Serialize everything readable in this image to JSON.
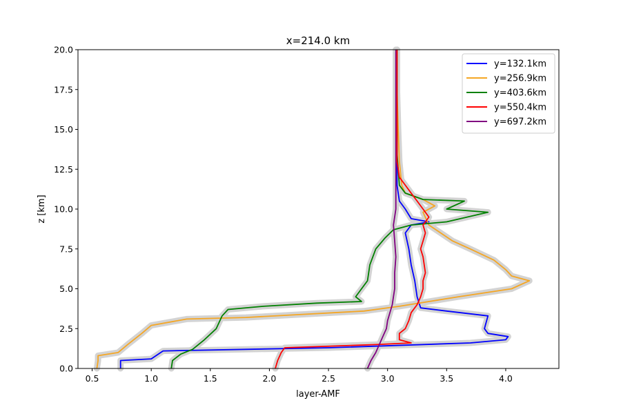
{
  "chart_data": {
    "type": "line",
    "title": "x=214.0 km",
    "xlabel": "layer-AMF",
    "ylabel": "z [km]",
    "xlim": [
      0.38,
      4.45
    ],
    "ylim": [
      0,
      20
    ],
    "xticks": [
      "0.5",
      "1.0",
      "1.5",
      "2.0",
      "2.5",
      "3.0",
      "3.5",
      "4.0"
    ],
    "yticks": [
      "0.0",
      "2.5",
      "5.0",
      "7.5",
      "10.0",
      "12.5",
      "15.0",
      "17.5",
      "20.0"
    ],
    "grid": false,
    "legend_position": "top-right",
    "uncertainty_band_color": "#d3d3d3",
    "series": [
      {
        "name": "y=132.1km",
        "color": "#0000ff",
        "points": [
          [
            0.74,
            0.0
          ],
          [
            0.74,
            0.5
          ],
          [
            1.0,
            0.6
          ],
          [
            1.1,
            1.1
          ],
          [
            2.5,
            1.3
          ],
          [
            3.7,
            1.6
          ],
          [
            4.0,
            1.8
          ],
          [
            4.02,
            2.0
          ],
          [
            3.85,
            2.2
          ],
          [
            3.82,
            2.5
          ],
          [
            3.85,
            3.3
          ],
          [
            3.5,
            3.6
          ],
          [
            3.28,
            3.8
          ],
          [
            3.25,
            4.5
          ],
          [
            3.23,
            5.5
          ],
          [
            3.2,
            6.5
          ],
          [
            3.18,
            7.5
          ],
          [
            3.15,
            8.5
          ],
          [
            3.2,
            9.0
          ],
          [
            3.35,
            9.2
          ],
          [
            3.2,
            9.4
          ],
          [
            3.15,
            10.0
          ],
          [
            3.1,
            10.5
          ],
          [
            3.08,
            11.5
          ],
          [
            3.08,
            13.0
          ],
          [
            3.08,
            15.0
          ],
          [
            3.08,
            17.5
          ],
          [
            3.08,
            20.0
          ]
        ]
      },
      {
        "name": "y=256.9km",
        "color": "#f5a623",
        "points": [
          [
            0.54,
            0.0
          ],
          [
            0.55,
            0.5
          ],
          [
            0.55,
            0.8
          ],
          [
            0.72,
            1.0
          ],
          [
            0.8,
            1.5
          ],
          [
            0.92,
            2.2
          ],
          [
            1.0,
            2.7
          ],
          [
            1.3,
            3.1
          ],
          [
            1.8,
            3.2
          ],
          [
            2.8,
            3.6
          ],
          [
            3.1,
            3.9
          ],
          [
            3.6,
            4.5
          ],
          [
            4.05,
            5.0
          ],
          [
            4.2,
            5.5
          ],
          [
            4.05,
            5.8
          ],
          [
            4.0,
            6.2
          ],
          [
            3.9,
            6.8
          ],
          [
            3.7,
            7.5
          ],
          [
            3.55,
            8.0
          ],
          [
            3.45,
            8.5
          ],
          [
            3.35,
            9.0
          ],
          [
            3.3,
            9.8
          ],
          [
            3.4,
            10.2
          ],
          [
            3.3,
            10.6
          ],
          [
            3.15,
            11.0
          ],
          [
            3.12,
            11.5
          ],
          [
            3.1,
            13.0
          ],
          [
            3.09,
            15.0
          ],
          [
            3.08,
            17.5
          ],
          [
            3.08,
            20.0
          ]
        ]
      },
      {
        "name": "y=403.6km",
        "color": "#008000",
        "points": [
          [
            1.17,
            0.0
          ],
          [
            1.18,
            0.5
          ],
          [
            1.25,
            0.9
          ],
          [
            1.35,
            1.2
          ],
          [
            1.45,
            1.8
          ],
          [
            1.55,
            2.5
          ],
          [
            1.6,
            3.3
          ],
          [
            1.65,
            3.7
          ],
          [
            1.95,
            3.9
          ],
          [
            2.4,
            4.1
          ],
          [
            2.78,
            4.2
          ],
          [
            2.73,
            4.5
          ],
          [
            2.78,
            5.0
          ],
          [
            2.83,
            5.5
          ],
          [
            2.85,
            6.5
          ],
          [
            2.9,
            7.5
          ],
          [
            2.98,
            8.2
          ],
          [
            3.05,
            8.7
          ],
          [
            3.2,
            9.0
          ],
          [
            3.5,
            9.2
          ],
          [
            3.85,
            9.8
          ],
          [
            3.5,
            10.0
          ],
          [
            3.65,
            10.5
          ],
          [
            3.3,
            10.6
          ],
          [
            3.15,
            11.0
          ],
          [
            3.1,
            11.5
          ],
          [
            3.09,
            12.5
          ],
          [
            3.08,
            13.5
          ],
          [
            3.08,
            15.0
          ],
          [
            3.08,
            17.5
          ],
          [
            3.08,
            20.0
          ]
        ]
      },
      {
        "name": "y=550.4km",
        "color": "#ff0000",
        "points": [
          [
            2.05,
            0.0
          ],
          [
            2.07,
            0.5
          ],
          [
            2.1,
            1.0
          ],
          [
            2.13,
            1.3
          ],
          [
            2.9,
            1.5
          ],
          [
            3.2,
            1.6
          ],
          [
            3.1,
            1.8
          ],
          [
            3.1,
            2.2
          ],
          [
            3.15,
            2.5
          ],
          [
            3.18,
            3.0
          ],
          [
            3.2,
            3.5
          ],
          [
            3.25,
            4.0
          ],
          [
            3.28,
            4.5
          ],
          [
            3.3,
            5.0
          ],
          [
            3.3,
            5.5
          ],
          [
            3.32,
            6.0
          ],
          [
            3.3,
            7.0
          ],
          [
            3.28,
            7.5
          ],
          [
            3.3,
            8.0
          ],
          [
            3.32,
            8.5
          ],
          [
            3.3,
            9.0
          ],
          [
            3.35,
            9.5
          ],
          [
            3.3,
            10.0
          ],
          [
            3.25,
            10.5
          ],
          [
            3.2,
            11.0
          ],
          [
            3.15,
            11.5
          ],
          [
            3.1,
            12.0
          ],
          [
            3.08,
            13.0
          ],
          [
            3.08,
            15.0
          ],
          [
            3.08,
            17.5
          ],
          [
            3.08,
            20.0
          ]
        ]
      },
      {
        "name": "y=697.2km",
        "color": "#800080",
        "points": [
          [
            2.83,
            0.0
          ],
          [
            2.86,
            0.5
          ],
          [
            2.9,
            1.0
          ],
          [
            2.93,
            1.5
          ],
          [
            2.96,
            2.0
          ],
          [
            2.99,
            2.5
          ],
          [
            3.0,
            3.0
          ],
          [
            3.02,
            3.5
          ],
          [
            3.04,
            4.0
          ],
          [
            3.05,
            4.5
          ],
          [
            3.06,
            5.0
          ],
          [
            3.06,
            6.0
          ],
          [
            3.07,
            7.0
          ],
          [
            3.06,
            8.0
          ],
          [
            3.05,
            9.0
          ],
          [
            3.07,
            10.0
          ],
          [
            3.07,
            11.0
          ],
          [
            3.07,
            12.0
          ],
          [
            3.07,
            13.0
          ],
          [
            3.07,
            15.0
          ],
          [
            3.07,
            17.5
          ],
          [
            3.07,
            20.0
          ]
        ]
      }
    ]
  }
}
